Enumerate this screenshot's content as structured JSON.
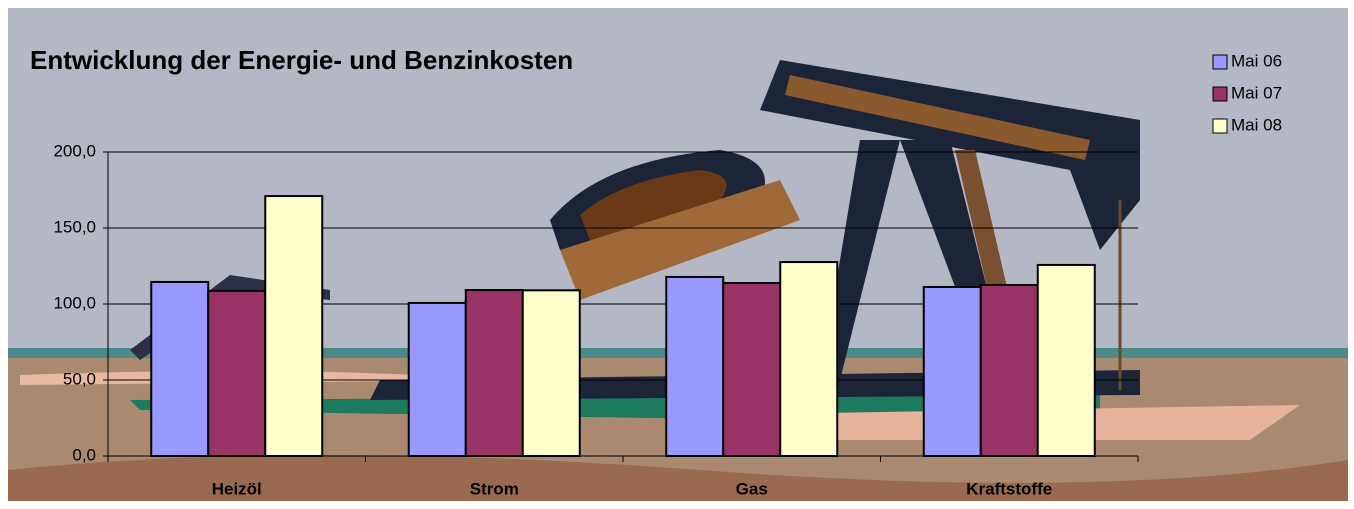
{
  "chart_data": {
    "type": "bar",
    "title": "Entwicklung der Energie- und Benzinkosten",
    "categories": [
      "Heizöl",
      "Strom",
      "Gas",
      "Kraftstoffe"
    ],
    "series": [
      {
        "name": "Mai 06",
        "color": "#9999ff",
        "values": [
          114.5,
          100.7,
          117.8,
          111.2
        ]
      },
      {
        "name": "Mai 07",
        "color": "#993366",
        "values": [
          108.6,
          109.2,
          113.8,
          112.5
        ]
      },
      {
        "name": "Mai 08",
        "color": "#ffffcc",
        "values": [
          171.0,
          109.0,
          127.6,
          125.7
        ]
      }
    ],
    "ylim": [
      0,
      200
    ],
    "yticks": [
      {
        "value": 0,
        "label": "0,0"
      },
      {
        "value": 50,
        "label": "50,0"
      },
      {
        "value": 100,
        "label": "100,0"
      },
      {
        "value": 150,
        "label": "150,0"
      },
      {
        "value": 200,
        "label": "200,0"
      }
    ],
    "grid": true,
    "legend": "top-right"
  }
}
